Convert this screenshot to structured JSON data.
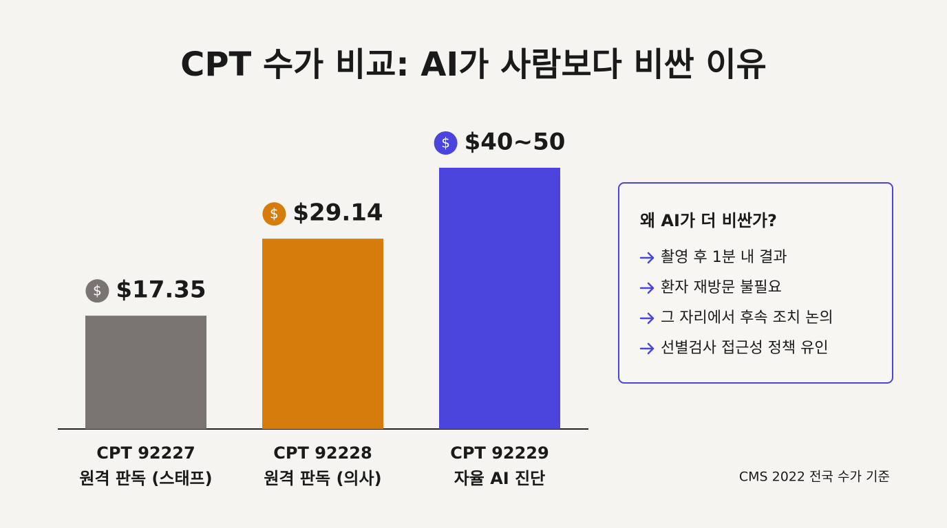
{
  "chart_data": {
    "type": "bar",
    "title": "CPT 수가 비교: AI가 사람보다 비싼 이유",
    "categories": [
      "CPT 92227",
      "CPT 92228",
      "CPT 92229"
    ],
    "category_descriptions": [
      "원격 판독 (스태프)",
      "원격 판독 (의사)",
      "자율 AI 진단"
    ],
    "values": [
      17.35,
      29.14,
      40
    ],
    "value_labels": [
      "$17.35",
      "$29.14",
      "$40~50"
    ],
    "colors": [
      "#7a7572",
      "#d57c0d",
      "#4a44dc"
    ],
    "coin_symbol": "$",
    "side_note": {
      "title": "왜 AI가 더 비싼가?",
      "items": [
        "촬영 후 1분 내 결과",
        "환자 재방문 불필요",
        "그 자리에서 후속 조치 논의",
        "선별검사 접근성 정책 유인"
      ]
    },
    "source": "CMS 2022 전국 수가 기준"
  }
}
